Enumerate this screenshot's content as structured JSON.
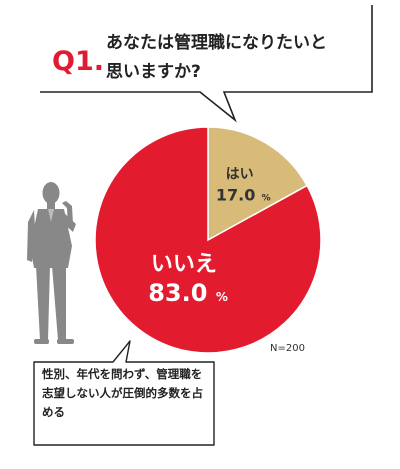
{
  "question": {
    "number": "Q1.",
    "text_line1": "あなたは管理職になりたいと",
    "text_line2": "思いますか?"
  },
  "note": "N=200",
  "caption": "性別、年代を問わず、管理職を志望しない人が圧倒的多数を占める",
  "colors": {
    "accent": "#E01B32",
    "no": "#E31B2F",
    "yes": "#D8BB79",
    "figure": "#888888"
  },
  "icons": {
    "figure": "businessman-thinking-icon"
  },
  "chart_data": {
    "type": "pie",
    "categories": [
      "はい",
      "いいえ"
    ],
    "values": [
      17.0,
      83.0
    ],
    "unit": "%",
    "value_labels": [
      "17.0",
      "83.0"
    ],
    "title": "",
    "legend": "none"
  }
}
